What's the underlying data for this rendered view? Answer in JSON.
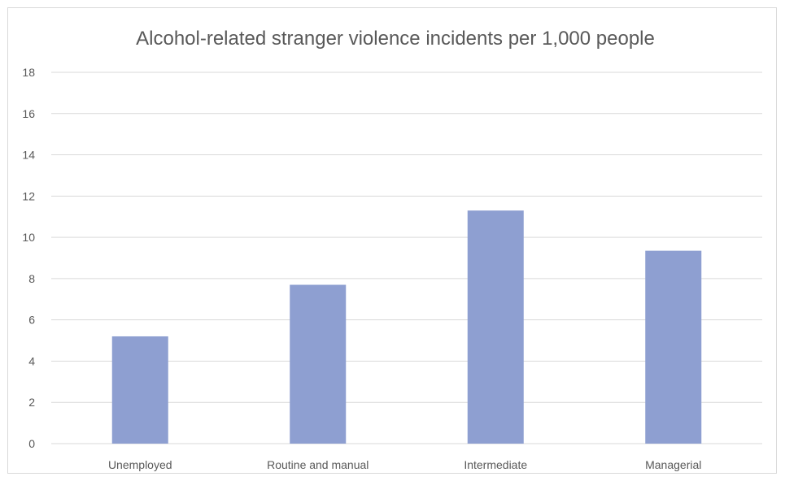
{
  "chart_data": {
    "type": "bar",
    "title": "Alcohol-related stranger violence incidents per 1,000 people",
    "xlabel": "",
    "ylabel": "",
    "categories": [
      "Unemployed",
      "Routine and manual",
      "Intermediate",
      "Managerial"
    ],
    "series": [
      {
        "values": [
          5.2,
          7.7,
          11.3,
          9.35
        ]
      }
    ],
    "ylim": [
      0,
      18
    ],
    "yticks": [
      0,
      2,
      4,
      6,
      8,
      10,
      12,
      14,
      16,
      18
    ],
    "grid": true,
    "legend": "none",
    "bar_color": "#8e9fd1"
  }
}
